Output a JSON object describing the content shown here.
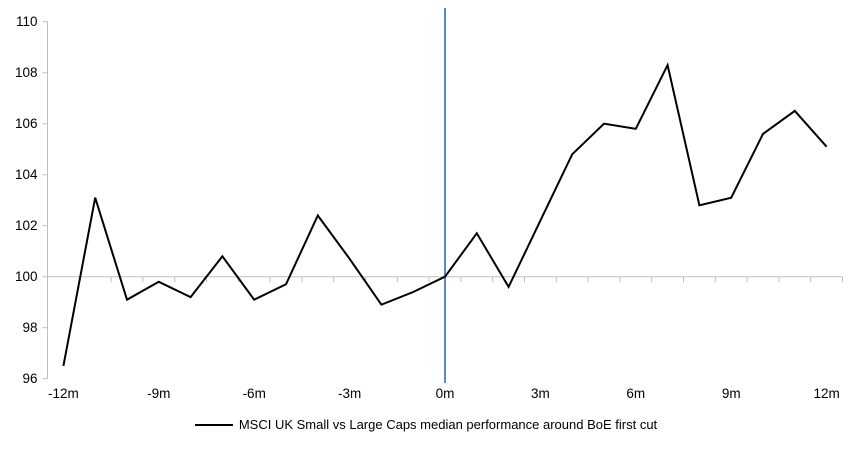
{
  "chart_data": {
    "type": "line",
    "title": "",
    "xlabel": "",
    "ylabel": "",
    "legend": "MSCI UK Small vs Large Caps median performance around BoE first cut",
    "legend_position": "bottom",
    "x_unit": "months relative to BoE first cut",
    "x": [
      -12,
      -11,
      -10,
      -9,
      -8,
      -7,
      -6,
      -5,
      -4,
      -3,
      -2,
      -1,
      0,
      1,
      2,
      3,
      4,
      5,
      6,
      7,
      8,
      9,
      10,
      11,
      12
    ],
    "values": [
      96.5,
      103.1,
      99.1,
      99.8,
      99.2,
      100.8,
      99.1,
      99.7,
      102.4,
      100.7,
      98.9,
      99.4,
      100.0,
      101.7,
      99.6,
      102.2,
      104.8,
      106.0,
      105.8,
      108.3,
      102.8,
      103.1,
      105.6,
      106.5,
      105.1
    ],
    "ylim": [
      96,
      110
    ],
    "xlim": [
      -12.5,
      12.5
    ],
    "y_ticks": [
      110,
      108,
      106,
      104,
      102,
      100,
      98,
      96
    ],
    "x_tick_months": [
      -12,
      -9,
      -6,
      -3,
      0,
      3,
      6,
      9,
      12
    ],
    "x_tick_labels": [
      "-12m",
      "-9m",
      "-6m",
      "-3m",
      "0m",
      "3m",
      "6m",
      "9m",
      "12m"
    ],
    "baseline_value": 100,
    "event_line_x": 0,
    "grid": "off",
    "colors": {
      "series": "#000000",
      "event_line": "#5a8cc3",
      "axis": "#bfbfbf",
      "text": "#000000"
    }
  }
}
